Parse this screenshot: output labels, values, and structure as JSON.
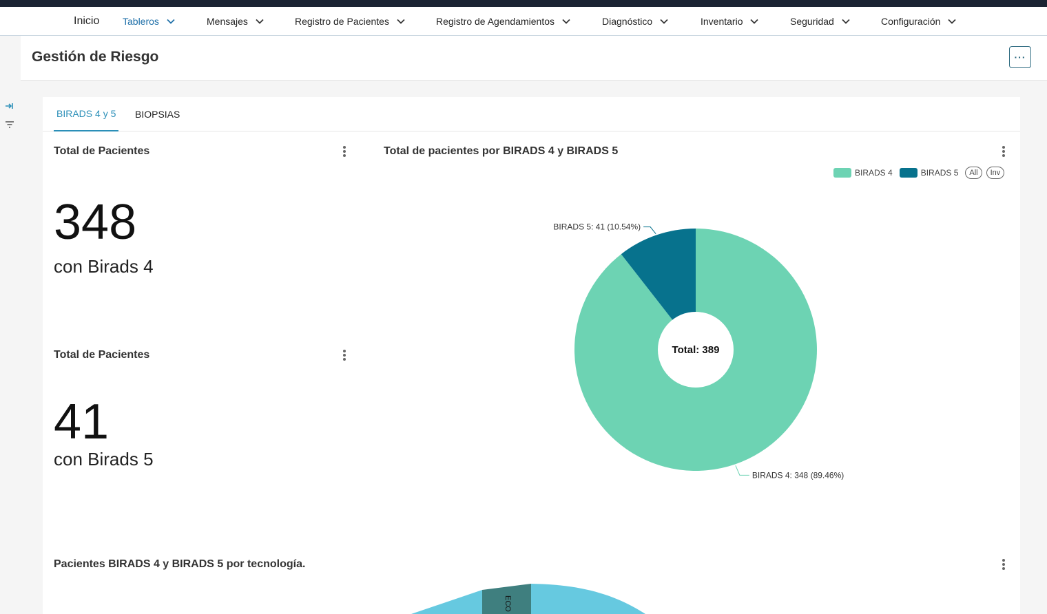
{
  "nav": {
    "items": [
      {
        "label": "Inicio",
        "chevron": false
      },
      {
        "label": "Tableros",
        "chevron": true
      },
      {
        "label": "Mensajes",
        "chevron": true
      },
      {
        "label": "Registro de Pacientes",
        "chevron": true
      },
      {
        "label": "Registro de Agendamientos",
        "chevron": true
      },
      {
        "label": "Diagnóstico",
        "chevron": true
      },
      {
        "label": "Inventario",
        "chevron": true
      },
      {
        "label": "Seguridad",
        "chevron": true
      },
      {
        "label": "Configuración",
        "chevron": true
      }
    ],
    "active": "Tableros"
  },
  "rail": {
    "icons": [
      "expand-sidebar-icon",
      "filter-icon"
    ]
  },
  "page": {
    "title": "Gestión de Riesgo",
    "more_label": "···"
  },
  "tabs": [
    {
      "label": "BIRADS 4 y 5"
    },
    {
      "label": "BIOPSIAS"
    }
  ],
  "cards": {
    "birads4": {
      "title": "Total de Pacientes",
      "value": "348",
      "subtitle": "con Birads 4"
    },
    "birads5": {
      "title": "Total de Pacientes",
      "value": "41",
      "subtitle": "con Birads 5"
    },
    "pie": {
      "title": "Total de pacientes por BIRADS 4 y BIRADS 5"
    },
    "tech": {
      "title": "Pacientes BIRADS 4 y BIRADS 5 por tecnología."
    }
  },
  "legend": {
    "items": [
      {
        "label": "BIRADS 4",
        "color": "#6dd3b3"
      },
      {
        "label": "BIRADS 5",
        "color": "#07728d"
      }
    ],
    "buttons": [
      "All",
      "Inv"
    ]
  },
  "chart_data": [
    {
      "type": "pie",
      "title": "Total de pacientes por BIRADS 4 y BIRADS 5",
      "center_label": "Total: 389",
      "slices": [
        {
          "name": "BIRADS 4",
          "value": 348,
          "percent": 89.46,
          "label": "BIRADS 4: 348 (89.46%)",
          "color": "#6dd3b3"
        },
        {
          "name": "BIRADS 5",
          "value": 41,
          "percent": 10.54,
          "label": "BIRADS 5: 41 (10.54%)",
          "color": "#07728d"
        }
      ]
    }
  ],
  "tech_chart": {
    "visible_label": "ECO"
  }
}
